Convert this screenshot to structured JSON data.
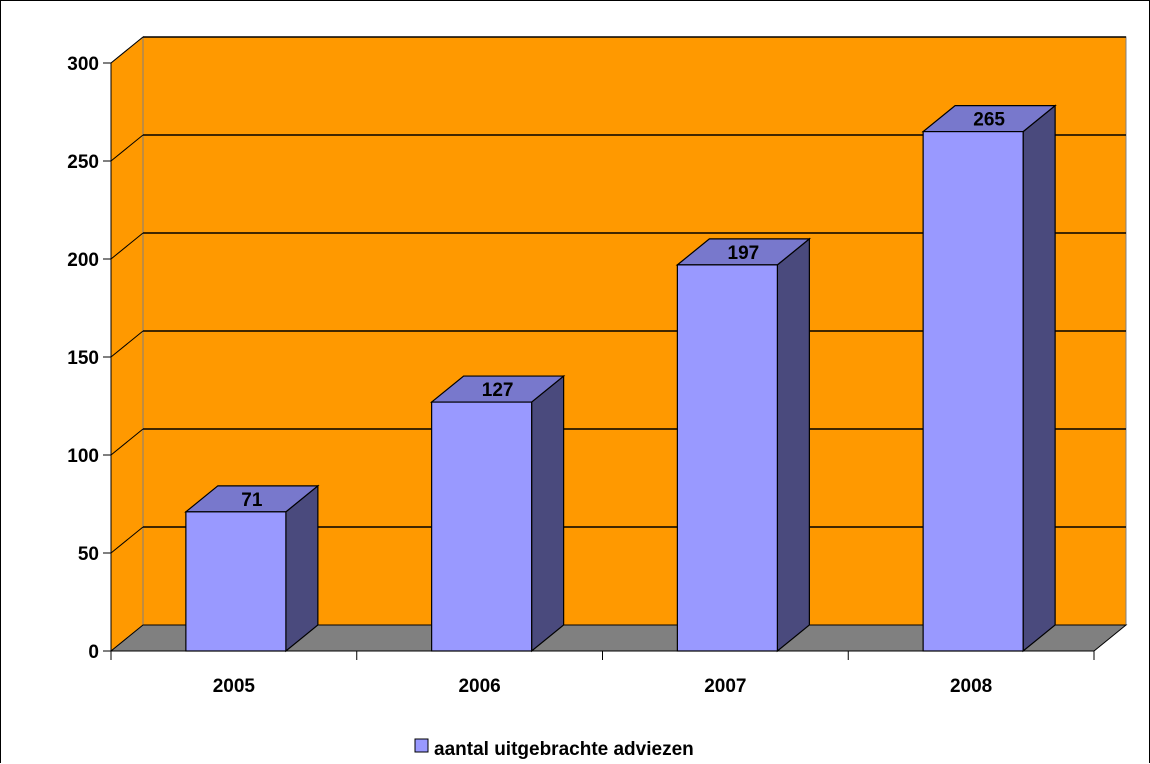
{
  "chart_data": {
    "type": "bar",
    "categories": [
      "2005",
      "2006",
      "2007",
      "2008"
    ],
    "series": [
      {
        "name": "aantal uitgebrachte adviezen",
        "values": [
          71,
          127,
          197,
          265
        ]
      }
    ],
    "ylim": [
      0,
      300
    ],
    "yticks": [
      0,
      50,
      100,
      150,
      200,
      250,
      300
    ],
    "grid": true,
    "legend": "bottom",
    "colors": {
      "wall": "#ff9900",
      "floor": "#808080",
      "bar_front": "#9999ff",
      "bar_side": "#4a4a7d",
      "bar_top": "#7878cc",
      "gridline": "#000000"
    }
  }
}
